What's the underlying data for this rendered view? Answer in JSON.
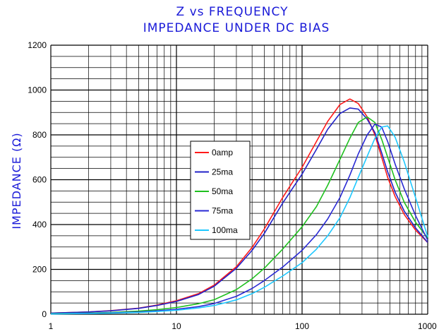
{
  "chart_data": {
    "type": "line",
    "title": "Z vs FREQUENCY",
    "subtitle": "IMPEDANCE UNDER DC BIAS",
    "xlabel": "",
    "ylabel": "IMPEDANCE (Ω)",
    "xscale": "log",
    "xlim": [
      1,
      1000
    ],
    "ylim": [
      0,
      1200
    ],
    "xticks": [
      "1",
      "10",
      "100",
      "1000"
    ],
    "yticks": [
      "0",
      "200",
      "400",
      "600",
      "800",
      "1000",
      "1200"
    ],
    "grid": true,
    "legend_position": "center-left",
    "x": [
      1,
      2,
      3,
      5,
      7,
      10,
      15,
      20,
      30,
      40,
      50,
      70,
      100,
      130,
      160,
      200,
      240,
      280,
      330,
      380,
      430,
      480,
      550,
      650,
      800,
      1000
    ],
    "series": [
      {
        "name": "0amp",
        "color": "#ff1a1a",
        "values": [
          5,
          10,
          16,
          27,
          41,
          60,
          92,
          130,
          212,
          298,
          380,
          520,
          655,
          770,
          860,
          935,
          960,
          940,
          880,
          800,
          700,
          610,
          525,
          445,
          375,
          320
        ]
      },
      {
        "name": "25ma",
        "color": "#2222c8",
        "values": [
          5,
          10,
          15,
          26,
          39,
          57,
          88,
          125,
          205,
          285,
          360,
          495,
          625,
          735,
          825,
          895,
          920,
          915,
          870,
          810,
          720,
          635,
          545,
          460,
          385,
          320
        ]
      },
      {
        "name": "50ma",
        "color": "#1fc01f",
        "values": [
          3,
          5,
          8,
          14,
          20,
          30,
          47,
          65,
          110,
          158,
          205,
          290,
          390,
          480,
          575,
          690,
          785,
          855,
          880,
          855,
          780,
          700,
          600,
          500,
          410,
          340
        ]
      },
      {
        "name": "75ma",
        "color": "#2a2ad4",
        "values": [
          2,
          4,
          6,
          10,
          15,
          22,
          34,
          48,
          80,
          115,
          150,
          210,
          285,
          355,
          425,
          520,
          620,
          715,
          800,
          848,
          835,
          770,
          670,
          560,
          440,
          330
        ]
      },
      {
        "name": "100ma",
        "color": "#1ec8ff",
        "values": [
          1,
          3,
          5,
          8,
          12,
          18,
          28,
          39,
          64,
          92,
          120,
          170,
          230,
          290,
          350,
          430,
          520,
          610,
          705,
          785,
          835,
          840,
          790,
          680,
          520,
          345
        ]
      }
    ]
  }
}
